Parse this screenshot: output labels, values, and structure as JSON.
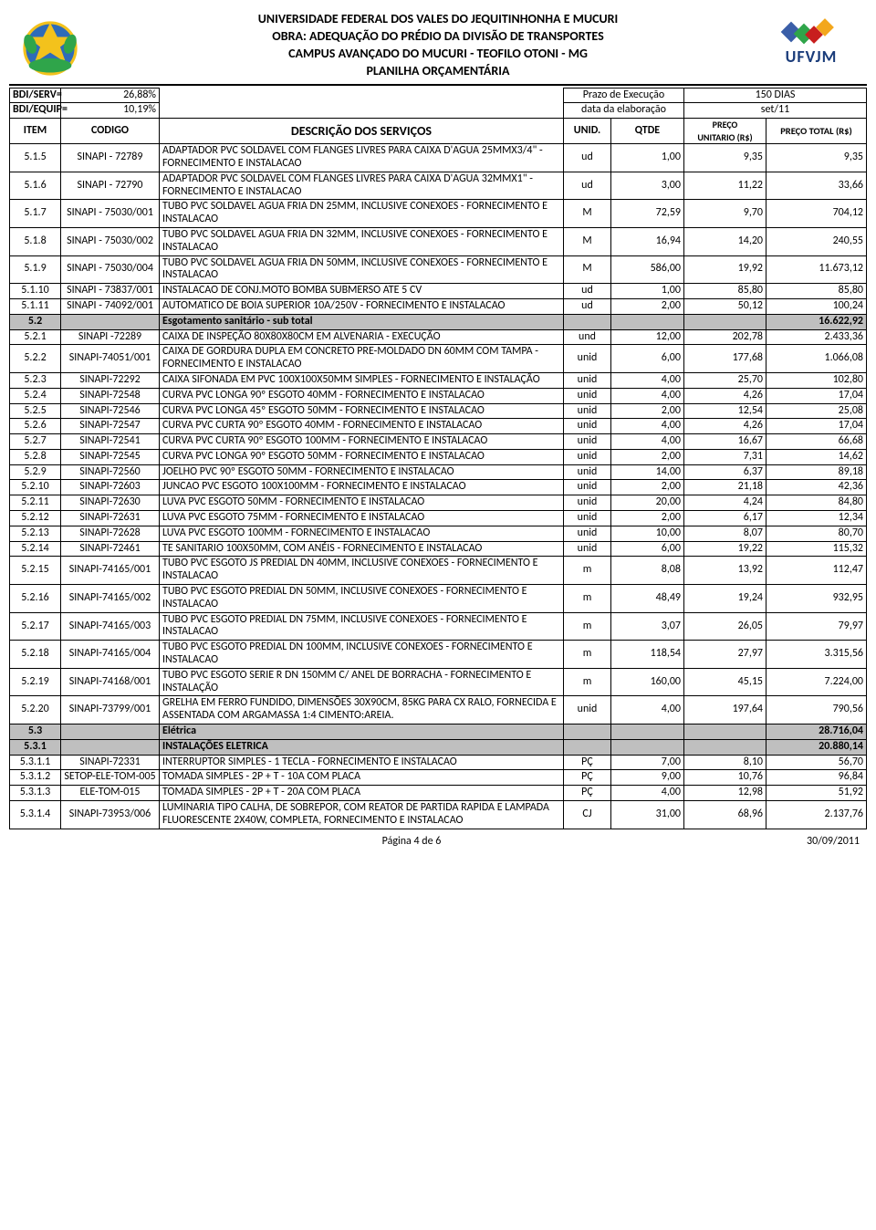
{
  "header": {
    "line1": "UNIVERSIDADE FEDERAL DOS VALES DO JEQUITINHONHA E MUCURI",
    "line2": "OBRA: ADEQUAÇÃO DO PRÉDIO DA DIVISÃO DE TRANSPORTES",
    "line3": "CAMPUS AVANÇADO DO MUCURI - TEOFILO OTONI - MG",
    "line4": "PLANILHA ORÇAMENTÁRIA",
    "ufvjm": "UFVJM"
  },
  "meta": {
    "bdi_serv_label": "BDI/SERV=",
    "bdi_serv": "26,88%",
    "bdi_equip_label": "BDI/EQUIP=",
    "bdi_equip": "10,19%",
    "prazo_label": "Prazo de Execução",
    "prazo": "150 DIAS",
    "data_label": "data da elaboração",
    "data": "set/11"
  },
  "cols": {
    "item": "ITEM",
    "codigo": "CODIGO",
    "desc": "DESCRIÇÃO DOS SERVIÇOS",
    "unid": "UNID.",
    "qtde": "QTDE",
    "preco_unit_top": "PREÇO",
    "preco_unit": "UNITARIO (R$)",
    "preco_total": "PREÇO TOTAL (R$)"
  },
  "rows": [
    {
      "item": "5.1.5",
      "codigo": "SINAPI - 72789",
      "desc": "ADAPTADOR PVC SOLDAVEL COM FLANGES LIVRES PARA CAIXA D'AGUA 25MMX3/4\" - FORNECIMENTO E INSTALACAO",
      "unid": "ud",
      "qtde": "1,00",
      "unit": "9,35",
      "total": "9,35"
    },
    {
      "item": "5.1.6",
      "codigo": "SINAPI - 72790",
      "desc": "ADAPTADOR PVC SOLDAVEL COM FLANGES LIVRES PARA CAIXA D'AGUA 32MMX1\" - FORNECIMENTO E INSTALACAO",
      "unid": "ud",
      "qtde": "3,00",
      "unit": "11,22",
      "total": "33,66"
    },
    {
      "item": "5.1.7",
      "codigo": "SINAPI - 75030/001",
      "desc": "TUBO PVC SOLDAVEL AGUA FRIA DN 25MM, INCLUSIVE CONEXOES - FORNECIMENTO E INSTALACAO",
      "unid": "M",
      "qtde": "72,59",
      "unit": "9,70",
      "total": "704,12"
    },
    {
      "item": "5.1.8",
      "codigo": "SINAPI - 75030/002",
      "desc": "TUBO PVC SOLDAVEL AGUA FRIA DN 32MM, INCLUSIVE CONEXOES - FORNECIMENTO E INSTALACAO",
      "unid": "M",
      "qtde": "16,94",
      "unit": "14,20",
      "total": "240,55"
    },
    {
      "item": "5.1.9",
      "codigo": "SINAPI - 75030/004",
      "desc": "TUBO PVC SOLDAVEL AGUA FRIA DN 50MM, INCLUSIVE CONEXOES - FORNECIMENTO E INSTALACAO",
      "unid": "M",
      "qtde": "586,00",
      "unit": "19,92",
      "total": "11.673,12"
    },
    {
      "item": "5.1.10",
      "codigo": "SINAPI - 73837/001",
      "desc": "INSTALACAO DE CONJ.MOTO BOMBA SUBMERSO ATE 5 CV",
      "unid": "ud",
      "qtde": "1,00",
      "unit": "85,80",
      "total": "85,80"
    },
    {
      "item": "5.1.11",
      "codigo": "SINAPI - 74092/001",
      "desc": "AUTOMATICO DE BOIA SUPERIOR 10A/250V - FORNECIMENTO E INSTALACAO",
      "unid": "ud",
      "qtde": "2,00",
      "unit": "50,12",
      "total": "100,24"
    }
  ],
  "sub52": {
    "item": "5.2",
    "desc": "Esgotamento sanitário - sub total",
    "total": "16.622,92"
  },
  "rows2": [
    {
      "item": "5.2.1",
      "codigo": "SINAPI -72289",
      "desc": "CAIXA DE INSPEÇÃO 80X80X80CM EM ALVENARIA - EXECUÇÃO",
      "unid": "und",
      "qtde": "12,00",
      "unit": "202,78",
      "total": "2.433,36"
    },
    {
      "item": "5.2.2",
      "codigo": "SINAPI-74051/001",
      "desc": "CAIXA DE GORDURA DUPLA EM CONCRETO PRE-MOLDADO DN 60MM COM TAMPA - FORNECIMENTO E INSTALACAO",
      "unid": "unid",
      "qtde": "6,00",
      "unit": "177,68",
      "total": "1.066,08"
    },
    {
      "item": "5.2.3",
      "codigo": "SINAPI-72292",
      "desc": "CAIXA SIFONADA EM PVC 100X100X50MM SIMPLES - FORNECIMENTO E INSTALAÇÃO",
      "unid": "unid",
      "qtde": "4,00",
      "unit": "25,70",
      "total": "102,80"
    },
    {
      "item": "5.2.4",
      "codigo": "SINAPI-72548",
      "desc": "CURVA PVC LONGA 90º ESGOTO 40MM - FORNECIMENTO E INSTALACAO",
      "unid": "unid",
      "qtde": "4,00",
      "unit": "4,26",
      "total": "17,04"
    },
    {
      "item": "5.2.5",
      "codigo": "SINAPI-72546",
      "desc": "CURVA PVC LONGA 45º ESGOTO 50MM - FORNECIMENTO E INSTALACAO",
      "unid": "unid",
      "qtde": "2,00",
      "unit": "12,54",
      "total": "25,08"
    },
    {
      "item": "5.2.6",
      "codigo": "SINAPI-72547",
      "desc": "CURVA PVC CURTA 90º ESGOTO 40MM - FORNECIMENTO E INSTALACAO",
      "unid": "unid",
      "qtde": "4,00",
      "unit": "4,26",
      "total": "17,04"
    },
    {
      "item": "5.2.7",
      "codigo": "SINAPI-72541",
      "desc": "CURVA PVC CURTA 90º ESGOTO 100MM - FORNECIMENTO E INSTALACAO",
      "unid": "unid",
      "qtde": "4,00",
      "unit": "16,67",
      "total": "66,68"
    },
    {
      "item": "5.2.8",
      "codigo": "SINAPI-72545",
      "desc": "CURVA PVC LONGA 90º ESGOTO 50MM - FORNECIMENTO E INSTALACAO",
      "unid": "unid",
      "qtde": "2,00",
      "unit": "7,31",
      "total": "14,62"
    },
    {
      "item": "5.2.9",
      "codigo": "SINAPI-72560",
      "desc": "JOELHO PVC 90º ESGOTO 50MM - FORNECIMENTO E INSTALACAO",
      "unid": "unid",
      "qtde": "14,00",
      "unit": "6,37",
      "total": "89,18"
    },
    {
      "item": "5.2.10",
      "codigo": "SINAPI-72603",
      "desc": "JUNCAO PVC ESGOTO 100X100MM - FORNECIMENTO E INSTALACAO",
      "unid": "unid",
      "qtde": "2,00",
      "unit": "21,18",
      "total": "42,36"
    },
    {
      "item": "5.2.11",
      "codigo": "SINAPI-72630",
      "desc": "LUVA PVC ESGOTO 50MM - FORNECIMENTO E INSTALACAO",
      "unid": "unid",
      "qtde": "20,00",
      "unit": "4,24",
      "total": "84,80"
    },
    {
      "item": "5.2.12",
      "codigo": "SINAPI-72631",
      "desc": "LUVA PVC ESGOTO 75MM - FORNECIMENTO E INSTALACAO",
      "unid": "unid",
      "qtde": "2,00",
      "unit": "6,17",
      "total": "12,34"
    },
    {
      "item": "5.2.13",
      "codigo": "SINAPI-72628",
      "desc": "LUVA PVC ESGOTO 100MM - FORNECIMENTO E INSTALACAO",
      "unid": "unid",
      "qtde": "10,00",
      "unit": "8,07",
      "total": "80,70"
    },
    {
      "item": "5.2.14",
      "codigo": "SINAPI-72461",
      "desc": "TE SANITARIO 100X50MM, COM ANÉIS - FORNECIMENTO E INSTALACAO",
      "unid": "unid",
      "qtde": "6,00",
      "unit": "19,22",
      "total": "115,32"
    },
    {
      "item": "5.2.15",
      "codigo": "SINAPI-74165/001",
      "desc": "TUBO PVC ESGOTO JS PREDIAL DN 40MM, INCLUSIVE CONEXOES - FORNECIMENTO E INSTALACAO",
      "unid": "m",
      "qtde": "8,08",
      "unit": "13,92",
      "total": "112,47"
    },
    {
      "item": "5.2.16",
      "codigo": "SINAPI-74165/002",
      "desc": "TUBO PVC ESGOTO PREDIAL DN 50MM, INCLUSIVE CONEXOES - FORNECIMENTO E INSTALACAO",
      "unid": "m",
      "qtde": "48,49",
      "unit": "19,24",
      "total": "932,95"
    },
    {
      "item": "5.2.17",
      "codigo": "SINAPI-74165/003",
      "desc": "TUBO PVC ESGOTO PREDIAL DN 75MM, INCLUSIVE CONEXOES - FORNECIMENTO E INSTALACAO",
      "unid": "m",
      "qtde": "3,07",
      "unit": "26,05",
      "total": "79,97"
    },
    {
      "item": "5.2.18",
      "codigo": "SINAPI-74165/004",
      "desc": "TUBO PVC ESGOTO PREDIAL DN 100MM, INCLUSIVE CONEXOES - FORNECIMENTO E INSTALACAO",
      "unid": "m",
      "qtde": "118,54",
      "unit": "27,97",
      "total": "3.315,56"
    },
    {
      "item": "5.2.19",
      "codigo": "SINAPI-74168/001",
      "desc": "TUBO PVC ESGOTO SERIE R DN 150MM C/ ANEL DE BORRACHA - FORNECIMENTO E INSTALAÇÃO",
      "unid": "m",
      "qtde": "160,00",
      "unit": "45,15",
      "total": "7.224,00"
    },
    {
      "item": "5.2.20",
      "codigo": "SINAPI-73799/001",
      "desc": "GRELHA EM FERRO FUNDIDO, DIMENSÕES 30X90CM, 85KG PARA CX RALO, FORNECIDA E ASSENTADA COM ARGAMASSA 1:4 CIMENTO:AREIA.",
      "unid": "unid",
      "qtde": "4,00",
      "unit": "197,64",
      "total": "790,56"
    }
  ],
  "sub53": {
    "item": "5.3",
    "desc": "Elétrica",
    "total": "28.716,04"
  },
  "sub531": {
    "item": "5.3.1",
    "desc": "INSTALAÇÕES ELETRICA",
    "total": "20.880,14"
  },
  "rows3": [
    {
      "item": "5.3.1.1",
      "codigo": "SINAPI-72331",
      "desc": "INTERRUPTOR SIMPLES - 1 TECLA - FORNECIMENTO E INSTALACAO",
      "unid": "PÇ",
      "qtde": "7,00",
      "unit": "8,10",
      "total": "56,70"
    },
    {
      "item": "5.3.1.2",
      "codigo": "SETOP-ELE-TOM-005",
      "desc": "TOMADA SIMPLES - 2P + T - 10A COM PLACA",
      "unid": "PÇ",
      "qtde": "9,00",
      "unit": "10,76",
      "total": "96,84"
    },
    {
      "item": "5.3.1.3",
      "codigo": "ELE-TOM-015",
      "desc": "TOMADA SIMPLES - 2P + T - 20A COM PLACA",
      "unid": "PÇ",
      "qtde": "4,00",
      "unit": "12,98",
      "total": "51,92"
    },
    {
      "item": "5.3.1.4",
      "codigo": "SINAPI-73953/006",
      "desc": "LUMINARIA TIPO CALHA, DE SOBREPOR, COM REATOR DE PARTIDA RAPIDA E LAMPADA FLUORESCENTE 2X40W, COMPLETA, FORNECIMENTO E INSTALACAO",
      "unid": "CJ",
      "qtde": "31,00",
      "unit": "68,96",
      "total": "2.137,76"
    }
  ],
  "footer": {
    "page": "Página 4 de 6",
    "date": "30/09/2011"
  }
}
